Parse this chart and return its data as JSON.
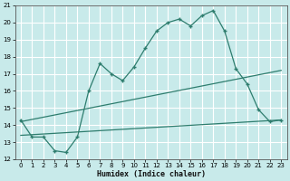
{
  "xlabel": "Humidex (Indice chaleur)",
  "bg_color": "#c8eaea",
  "grid_color": "#ffffff",
  "line_color": "#2e7d6e",
  "xlim": [
    -0.5,
    23.5
  ],
  "ylim": [
    12,
    21
  ],
  "xticks": [
    0,
    1,
    2,
    3,
    4,
    5,
    6,
    7,
    8,
    9,
    10,
    11,
    12,
    13,
    14,
    15,
    16,
    17,
    18,
    19,
    20,
    21,
    22,
    23
  ],
  "yticks": [
    12,
    13,
    14,
    15,
    16,
    17,
    18,
    19,
    20,
    21
  ],
  "main_x": [
    0,
    1,
    2,
    3,
    4,
    5,
    6,
    7,
    8,
    9,
    10,
    11,
    12,
    13,
    14,
    15,
    16,
    17,
    18,
    19,
    20,
    21,
    22,
    23
  ],
  "main_y": [
    14.3,
    13.3,
    13.3,
    12.5,
    12.4,
    13.3,
    16.0,
    17.6,
    17.0,
    16.6,
    17.4,
    18.5,
    19.5,
    20.0,
    20.2,
    19.8,
    20.4,
    20.7,
    19.5,
    17.3,
    16.4,
    14.9,
    14.2,
    14.3
  ],
  "line2_x": [
    0,
    23
  ],
  "line2_y": [
    14.2,
    17.2
  ],
  "line3_x": [
    0,
    23
  ],
  "line3_y": [
    13.4,
    14.3
  ]
}
